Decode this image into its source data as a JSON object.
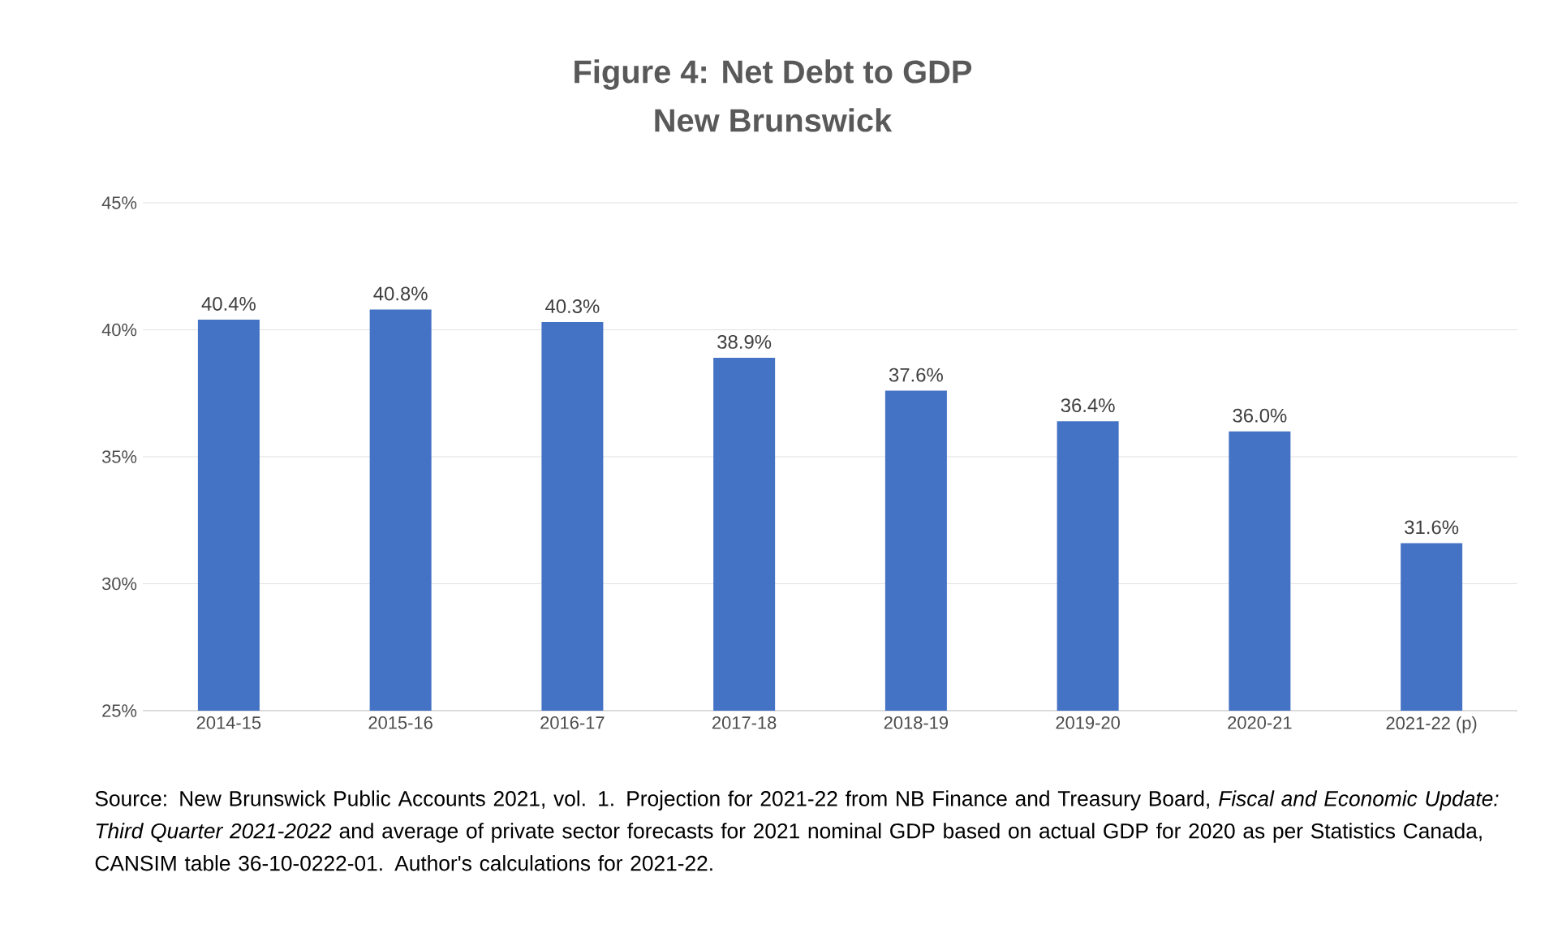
{
  "chart_data": {
    "type": "bar",
    "title": "Figure 4: Net Debt to GDP",
    "subtitle": "New Brunswick",
    "categories": [
      "2014-15",
      "2015-16",
      "2016-17",
      "2017-18",
      "2018-19",
      "2019-20",
      "2020-21",
      "2021-22 (p)"
    ],
    "values": [
      40.4,
      40.8,
      40.3,
      38.9,
      37.6,
      36.4,
      36.0,
      31.6
    ],
    "value_labels": [
      "40.4%",
      "40.8%",
      "40.3%",
      "38.9%",
      "37.6%",
      "36.4%",
      "36.0%",
      "31.6%"
    ],
    "color": "#4472c4",
    "ylim": [
      25,
      45
    ],
    "yticks": [
      {
        "value": 25,
        "label": "25%"
      },
      {
        "value": 30,
        "label": "30%"
      },
      {
        "value": 35,
        "label": "35%"
      },
      {
        "value": 40,
        "label": "40%"
      },
      {
        "value": 45,
        "label": "45%"
      }
    ],
    "grid": "y",
    "annotations": [
      "Source: New Brunswick Public Accounts 2021, vol. 1. Projection for 2021-22 from NB Finance and Treasury Board, *Fiscal and Economic Update: Third Quarter 2021-2022* and average of private sector forecasts for 2021 nominal GDP based on actual GDP for 2020 as per Statistics Canada, CANSIM table 36-10-0222-01. Author's calculations for 2021-22."
    ]
  }
}
